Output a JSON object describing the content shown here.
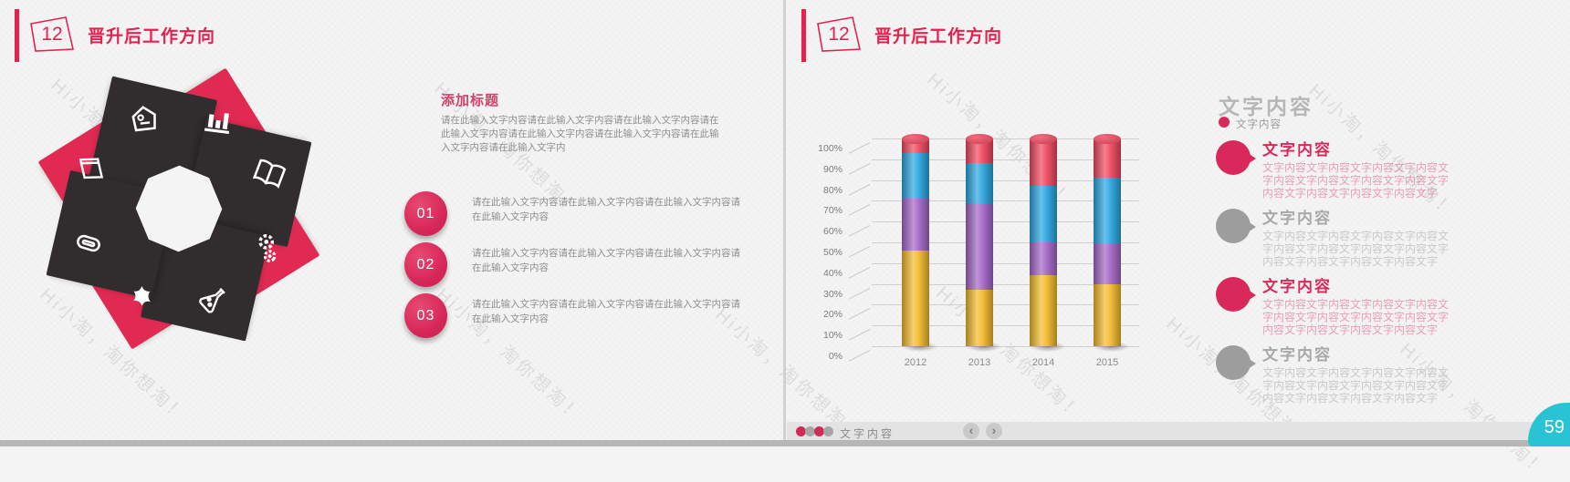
{
  "chart_data": {
    "type": "bar",
    "stacked": true,
    "percent_stacked": true,
    "title": "",
    "xlabel": "",
    "ylabel": "",
    "categories": [
      "2012",
      "2013",
      "2014",
      "2015"
    ],
    "series": [
      {
        "name": "segment-yellow",
        "color": "#f3bb2f",
        "values": [
          46,
          27,
          34,
          30
        ]
      },
      {
        "name": "segment-purple",
        "color": "#a468c7",
        "values": [
          25,
          42,
          16,
          19
        ]
      },
      {
        "name": "segment-blue",
        "color": "#2ba7e0",
        "values": [
          22,
          19,
          27,
          32
        ]
      },
      {
        "name": "segment-red",
        "color": "#f04a61",
        "values": [
          7,
          12,
          23,
          19
        ]
      }
    ],
    "ylim": [
      0,
      100
    ],
    "ytick_step": 10,
    "ytick_suffix": "%",
    "grid": true,
    "legend": false
  },
  "watermark": {
    "text": "Hi小淘，淘你想淘！"
  },
  "page_number": "59",
  "left_slide": {
    "header": {
      "number": "12",
      "title": "晋升后工作方向"
    },
    "pinwheel": {
      "petals": [
        {
          "icon": "home-tag-icon",
          "tone": "dark"
        },
        {
          "icon": "bar-chart-icon",
          "tone": "red"
        },
        {
          "icon": "book-icon",
          "tone": "dark"
        },
        {
          "icon": "gears-icon",
          "tone": "red"
        },
        {
          "icon": "flask-icon",
          "tone": "dark"
        },
        {
          "icon": "tool-icon",
          "tone": "red"
        },
        {
          "icon": "paperclip-icon",
          "tone": "dark"
        },
        {
          "icon": "laptop-icon",
          "tone": "red"
        }
      ]
    },
    "section": {
      "heading": "添加标题",
      "body": "请在此输入文字内容请在此输入文字内容请在此输入文字内容请在此输入文字内容请在此输入文字内容请在此输入文字内容请在此输入文字内容请在此输入文字内"
    },
    "items": [
      {
        "number": "01",
        "text": "请在此输入文字内容请在此输入文字内容请在此输入文字内容请在此输入文字内容"
      },
      {
        "number": "02",
        "text": "请在此输入文字内容请在此输入文字内容请在此输入文字内容请在此输入文字内容"
      },
      {
        "number": "03",
        "text": "请在此输入文字内容请在此输入文字内容请在此输入文字内容请在此输入文字内容"
      }
    ]
  },
  "right_slide": {
    "header": {
      "number": "12",
      "title": "晋升后工作方向"
    },
    "panel": {
      "title": "文字内容",
      "legend_dot_label": "文字内容",
      "items": [
        {
          "heading": "文字内容",
          "tone": "red",
          "body": "文字内容文字内容文字内容文字内容文字内容文字内容文字内容文字内容文字内容文字内容文字内容文字内容文字"
        },
        {
          "heading": "文字内容",
          "tone": "gray",
          "body": "文字内容文字内容文字内容文字内容文字内容文字内容文字内容文字内容文字内容文字内容文字内容文字内容文字"
        },
        {
          "heading": "文字内容",
          "tone": "red",
          "body": "文字内容文字内容文字内容文字内容文字内容文字内容文字内容文字内容文字内容文字内容文字内容文字内容文字"
        },
        {
          "heading": "文字内容",
          "tone": "gray",
          "body": "文字内容文字内容文字内容文字内容文字内容文字内容文字内容文字内容文字内容文字内容文字内容文字内容文字"
        }
      ]
    },
    "footer": {
      "dots": [
        "red",
        "gray",
        "red",
        "gray"
      ],
      "label": "文字内容",
      "prev_icon": "‹",
      "next_icon": "›"
    }
  },
  "colors": {
    "crimson": "#e6214e",
    "dark_shape": "#312d2f",
    "red_shape": "#e02a52",
    "badge_cyan": "#2ac3d4",
    "footer_bar": "#e3e3e3"
  }
}
